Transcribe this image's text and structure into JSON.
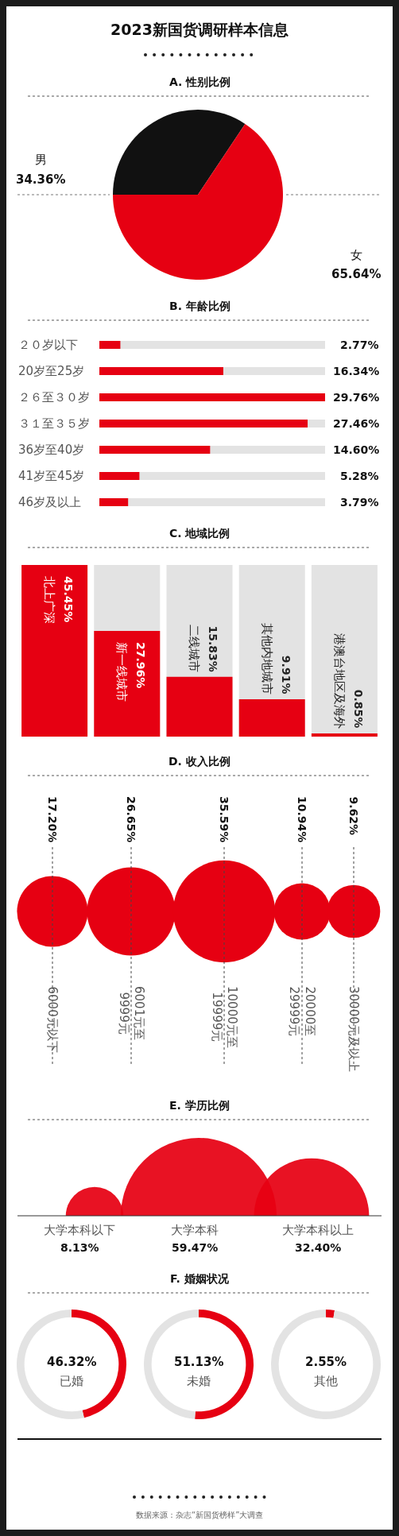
{
  "chart_data": [
    {
      "type": "pie",
      "title": "2023新国货调研样本信息",
      "subtitle": "A. 性别比例",
      "categories": [
        "男",
        "女"
      ],
      "values": [
        34.36,
        65.64
      ],
      "colors": [
        "#111111",
        "#e60012"
      ],
      "value_labels": [
        "34.36%",
        "65.64%"
      ]
    },
    {
      "type": "bar",
      "title": "B. 年龄比例",
      "orientation": "horizontal",
      "categories": [
        "２０岁以下",
        "20岁至25岁",
        "２６至３０岁",
        "３１至３５岁",
        "36岁至40岁",
        "41岁至45岁",
        "46岁及以上"
      ],
      "values": [
        2.77,
        16.34,
        29.76,
        27.46,
        14.6,
        5.28,
        3.79
      ],
      "value_labels": [
        "2.77%",
        "16.34%",
        "29.76%",
        "27.46%",
        "14.60%",
        "5.28%",
        "3.79%"
      ],
      "color": "#e60012",
      "xlim": [
        0,
        29.76
      ],
      "tick_labels": "y"
    },
    {
      "type": "bar",
      "title": "C. 地域比例",
      "categories": [
        "北上广深",
        "新一线城市",
        "二线城市",
        "其他内地城市",
        "港澳台地区及海外"
      ],
      "values": [
        45.45,
        27.96,
        15.83,
        9.91,
        0.85
      ],
      "value_labels": [
        "45.45%",
        "27.96%",
        "15.83%",
        "9.91%",
        "0.85%"
      ],
      "color": "#e60012",
      "ylim": [
        0,
        45.45
      ],
      "tick_labels": "x"
    },
    {
      "type": "other",
      "title": "D. 收入比例",
      "categories": [
        "6000元以下",
        "6001元至\n9999元",
        "10000元至\n19999元",
        "20000至\n29999元",
        "30000元及以上"
      ],
      "values": [
        17.2,
        26.65,
        35.59,
        10.94,
        9.62
      ],
      "value_labels": [
        "17.20%",
        "26.65%",
        "35.59%",
        "10.94%",
        "9.62%"
      ],
      "color": "#e60012"
    },
    {
      "type": "other",
      "title": "E. 学历比例",
      "categories": [
        "大学本科以下",
        "大学本科",
        "大学本科以上"
      ],
      "values": [
        8.13,
        59.47,
        32.4
      ],
      "value_labels": [
        "8.13%",
        "59.47%",
        "32.40%"
      ],
      "color": "#e60012"
    },
    {
      "type": "donut",
      "categories": [
        "已婚",
        null
      ],
      "values": [
        46.32,
        53.68
      ],
      "value_labels": [
        "46.32%",
        null
      ],
      "colors": [
        "#e60012",
        "#e3e3e3"
      ]
    },
    {
      "type": "donut",
      "title": "F. 婚姻状况",
      "categories": [
        "未婚",
        null
      ],
      "values": [
        51.13,
        48.87
      ],
      "value_labels": [
        "51.13%",
        null
      ],
      "colors": [
        "#e60012",
        "#e3e3e3"
      ]
    },
    {
      "type": "donut",
      "categories": [
        "其他",
        null
      ],
      "values": [
        2.55,
        97.45
      ],
      "value_labels": [
        "2.55%",
        null
      ],
      "colors": [
        "#e60012",
        "#e3e3e3"
      ],
      "annotations": [
        "数据来源：杂志“新国货榜样”大调查"
      ]
    }
  ]
}
